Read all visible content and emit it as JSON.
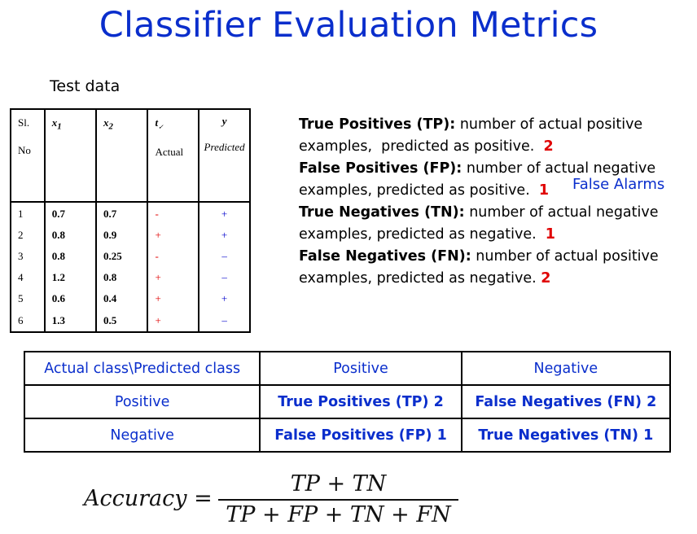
{
  "title": "Classifier Evaluation Metrics",
  "test_data": {
    "label": "Test data",
    "headers": {
      "sl": [
        "Sl.",
        "No"
      ],
      "x1": "x",
      "x1_sub": "1",
      "x2": "x",
      "x2_sub": "2",
      "t": "t",
      "t_sub": "✓",
      "t_label": "Actual",
      "y": "y",
      "y_label": "Predicted"
    },
    "rows": [
      {
        "sl": "1",
        "x1": "0.7",
        "x2": "0.7",
        "t": "-",
        "y": "+"
      },
      {
        "sl": "2",
        "x1": "0.8",
        "x2": "0.9",
        "t": "+",
        "y": "+"
      },
      {
        "sl": "3",
        "x1": "0.8",
        "x2": "0.25",
        "t": "-",
        "y": "–"
      },
      {
        "sl": "4",
        "x1": "1.2",
        "x2": "0.8",
        "t": "+",
        "y": "–"
      },
      {
        "sl": "5",
        "x1": "0.6",
        "x2": "0.4",
        "t": "+",
        "y": "+"
      },
      {
        "sl": "6",
        "x1": "1.3",
        "x2": "0.5",
        "t": "+",
        "y": "–"
      }
    ]
  },
  "definitions": [
    {
      "term": "True Positives (TP):",
      "line1": " number of actual   positive",
      "line2": "examples,  predicted as positive.  ",
      "count": "2"
    },
    {
      "term": "False Positives (FP):",
      "line1": " number of actual negative",
      "line2": "examples, predicted as positive.  ",
      "count": "1"
    },
    {
      "term": "True Negatives (TN):",
      "line1": " number of actual negative",
      "line2": "examples, predicted as negative.  ",
      "count": "1"
    },
    {
      "term": "False Negatives (FN):",
      "line1": " number of actual positive",
      "line2": "examples, predicted as negative. ",
      "count": "2"
    }
  ],
  "false_alarms": "False Alarms",
  "confusion": {
    "header": [
      "Actual class\\Predicted class",
      "Positive",
      "Negative"
    ],
    "rows": [
      [
        "Positive",
        "True Positives (TP)  2",
        "False Negatives (FN) 2"
      ],
      [
        "Negative",
        "False Positives (FP)  1",
        "True Negatives (TN) 1"
      ]
    ]
  },
  "formula": {
    "lhs": "Accuracy =",
    "numerator": "TP + TN",
    "denominator": "TP + FP + TN + FN"
  },
  "colors": {
    "blue": "#0a2ecc",
    "red": "#e00000"
  }
}
